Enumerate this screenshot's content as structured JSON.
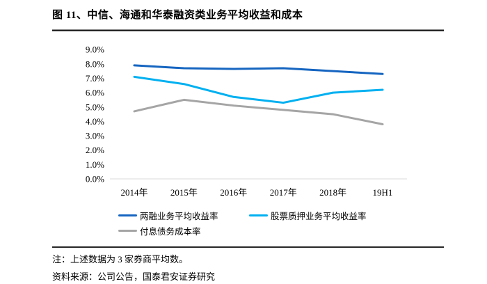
{
  "figure": {
    "title": "图 11、中信、海通和华泰融资类业务平均收益和成本",
    "note": "注：上述数据为 3 家券商平均数。",
    "source": "资料来源：公司公告，国泰君安证券研究"
  },
  "chart_data": {
    "type": "line",
    "categories": [
      "2014年",
      "2015年",
      "2016年",
      "2017年",
      "2018年",
      "19H1"
    ],
    "series": [
      {
        "name": "两融业务平均收益率",
        "color": "#1565C0",
        "values": [
          7.9,
          7.7,
          7.65,
          7.7,
          7.5,
          7.3
        ]
      },
      {
        "name": "股票质押业务平均收益率",
        "color": "#00B0F0",
        "values": [
          7.1,
          6.6,
          5.7,
          5.3,
          6.0,
          6.2
        ]
      },
      {
        "name": "付息债务成本率",
        "color": "#A5A5A5",
        "values": [
          4.7,
          5.5,
          5.1,
          4.8,
          4.5,
          3.8
        ]
      }
    ],
    "title": "",
    "xlabel": "",
    "ylabel": "",
    "ylim": [
      0,
      9
    ],
    "y_tick_labels": [
      "0.0%",
      "1.0%",
      "2.0%",
      "3.0%",
      "4.0%",
      "5.0%",
      "6.0%",
      "7.0%",
      "8.0%",
      "9.0%"
    ],
    "grid": false,
    "legend_position": "bottom-left",
    "axis_color": "#D9D9D9"
  }
}
